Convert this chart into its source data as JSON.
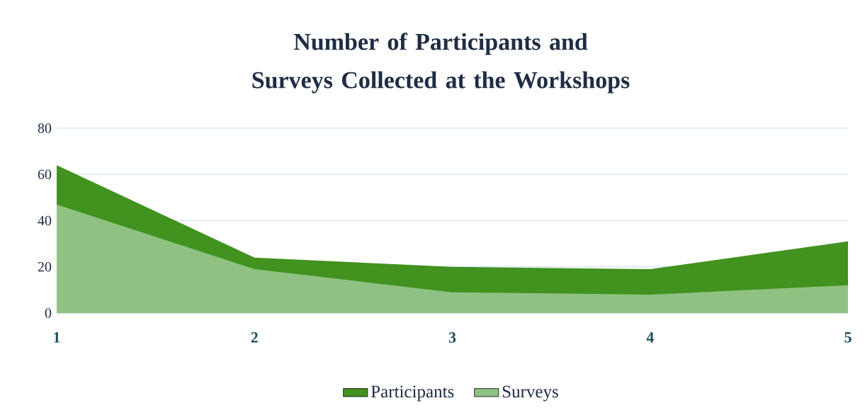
{
  "chart_data": {
    "type": "area",
    "title": "Number of Participants and Surveys Collected at the Workshops",
    "categories": [
      "1",
      "2",
      "3",
      "4",
      "5"
    ],
    "series": [
      {
        "name": "Participants",
        "color": "#41921f",
        "values": [
          64,
          24,
          20,
          19,
          31
        ]
      },
      {
        "name": "Surveys",
        "color": "#8fc282",
        "values": [
          47,
          19,
          9,
          8,
          12
        ]
      }
    ],
    "ylim": [
      0,
      80
    ],
    "yticks": [
      0,
      20,
      40,
      60,
      80
    ],
    "grid": "y",
    "legend": "bottom"
  }
}
